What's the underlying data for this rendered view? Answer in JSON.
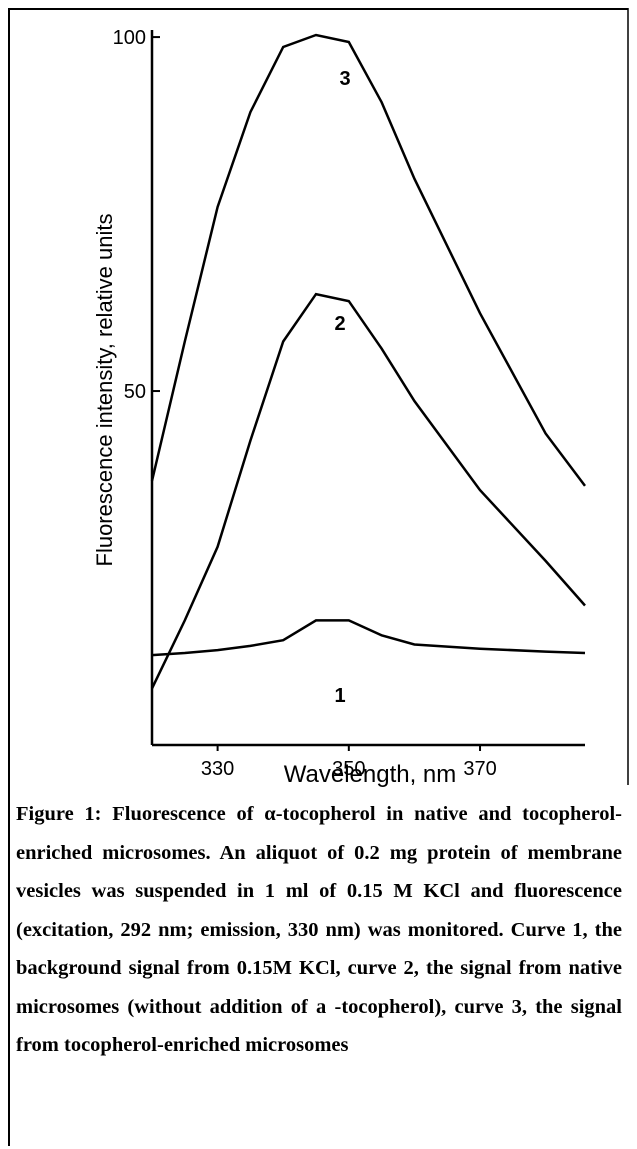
{
  "chart_data": {
    "type": "line",
    "xlabel": "Wavelength, nm",
    "ylabel": "Fluorescence intensity, relative units",
    "x": [
      320,
      325,
      330,
      335,
      340,
      345,
      350,
      355,
      360,
      370,
      380,
      386
    ],
    "series": [
      {
        "name": "1",
        "color": "#000000",
        "values": [
          12.7,
          13,
          13.4,
          14,
          14.8,
          17.6,
          17.6,
          15.5,
          14.2,
          13.6,
          13.2,
          13
        ]
      },
      {
        "name": "2",
        "color": "#000000",
        "values": [
          8,
          17.6,
          28,
          43,
          57,
          63.7,
          62.7,
          56,
          48.6,
          36,
          26,
          19.7
        ]
      },
      {
        "name": "3",
        "color": "#000000",
        "values": [
          37.3,
          57,
          76,
          89.4,
          98.6,
          100.3,
          99.3,
          90.8,
          80,
          61,
          44,
          36.6
        ]
      }
    ],
    "xlim": [
      320,
      386
    ],
    "xticks": [
      330,
      350,
      370
    ],
    "ylim": [
      0,
      101
    ],
    "yticks": [
      50,
      100
    ],
    "grid": false
  },
  "caption": {
    "label": "Figure 1:",
    "text": "Fluorescence of α-tocopherol in native and tocopherol-enriched microsomes. An aliquot of 0.2 mg protein of membrane vesicles was suspended in 1 ml of 0.15 M KCl and fluorescence (excitation, 292 nm; emission, 330 nm) was monitored. Curve 1, the background signal from 0.15M KCl, curve 2, the signal from native microsomes (without addition of a -tocopherol), curve 3, the signal from tocopherol-enriched microsomes"
  }
}
